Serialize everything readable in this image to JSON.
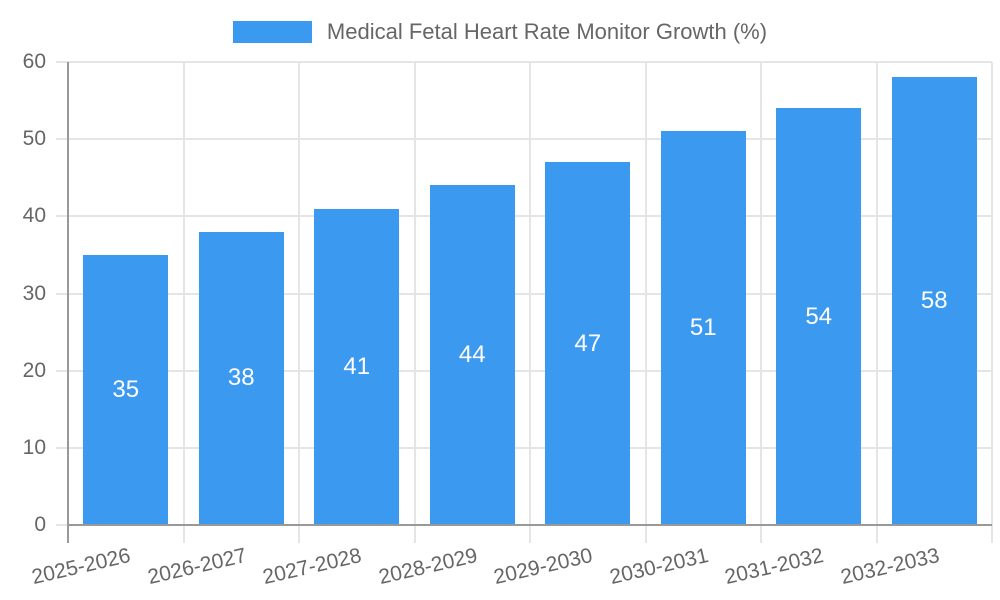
{
  "legend": {
    "swatch_color": "#3B99F0"
  },
  "chart_data": {
    "type": "bar",
    "title": "Medical Fetal Heart Rate Monitor Growth (%)",
    "categories": [
      "2025-2026",
      "2026-2027",
      "2027-2028",
      "2028-2029",
      "2029-2030",
      "2030-2031",
      "2031-2032",
      "2032-2033"
    ],
    "values": [
      35,
      38,
      41,
      44,
      47,
      51,
      54,
      58
    ],
    "xlabel": "",
    "ylabel": "",
    "ylim": [
      0,
      60
    ],
    "yticks": [
      0,
      10,
      20,
      30,
      40,
      50,
      60
    ],
    "grid": true,
    "legend_position": "top",
    "value_labels": "inside-center",
    "bar_color": "#3B99F0",
    "value_label_color": "#ffffff",
    "text_color": "#666666",
    "grid_color": "#e5e5e5",
    "axis_color": "#999999",
    "background": "#ffffff"
  }
}
